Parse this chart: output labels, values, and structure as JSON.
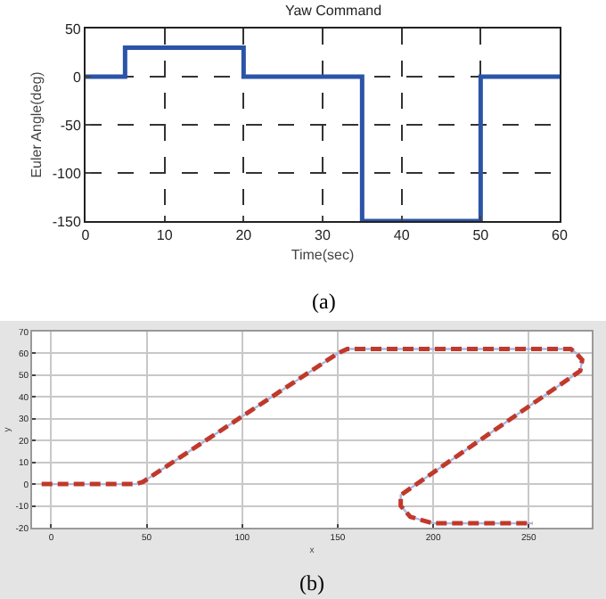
{
  "chart_data": [
    {
      "type": "step",
      "title": "Yaw Command",
      "xlabel": "Time(sec)",
      "ylabel": "Euler Angle(deg)",
      "annotations": [
        "(a)"
      ],
      "x": [
        0,
        5,
        20,
        35,
        50,
        60
      ],
      "series": [
        {
          "color": "#2b54a8",
          "values": [
            0,
            30,
            0,
            -150,
            0,
            0
          ]
        }
      ],
      "xlim": [
        0,
        60
      ],
      "xticks": [
        0,
        10,
        20,
        30,
        40,
        50,
        60
      ],
      "ylim": [
        -150,
        50
      ],
      "yticks": [
        -150,
        -100,
        -50,
        0,
        50
      ],
      "grid": true,
      "marker": "none",
      "line_style": "solid"
    },
    {
      "type": "line",
      "xlabel": "x",
      "ylabel": "y",
      "annotations": [
        "(b)"
      ],
      "x": [
        -5,
        44,
        48,
        150,
        155,
        160,
        272,
        275,
        278,
        277,
        183,
        183,
        188,
        200,
        252
      ],
      "series": [
        {
          "color": "#a9b8e0",
          "line_style": "solid",
          "values": [
            0,
            0,
            1,
            60,
            62,
            62,
            62,
            60,
            57,
            52,
            -5,
            -10,
            -15,
            -18,
            -18
          ]
        },
        {
          "color": "#c0392b",
          "line_style": "dashed",
          "values": [
            0,
            0,
            1,
            60,
            62,
            62,
            62,
            60,
            57,
            52,
            -5,
            -10,
            -15,
            -18,
            -18
          ]
        }
      ],
      "xlim": [
        -10,
        283
      ],
      "xticks": [
        0,
        50,
        100,
        150,
        200,
        250
      ],
      "ylim": [
        -20,
        70
      ],
      "yticks": [
        -20,
        -10,
        0,
        10,
        20,
        30,
        40,
        50,
        60,
        70
      ],
      "grid": true,
      "marker": "none"
    }
  ]
}
